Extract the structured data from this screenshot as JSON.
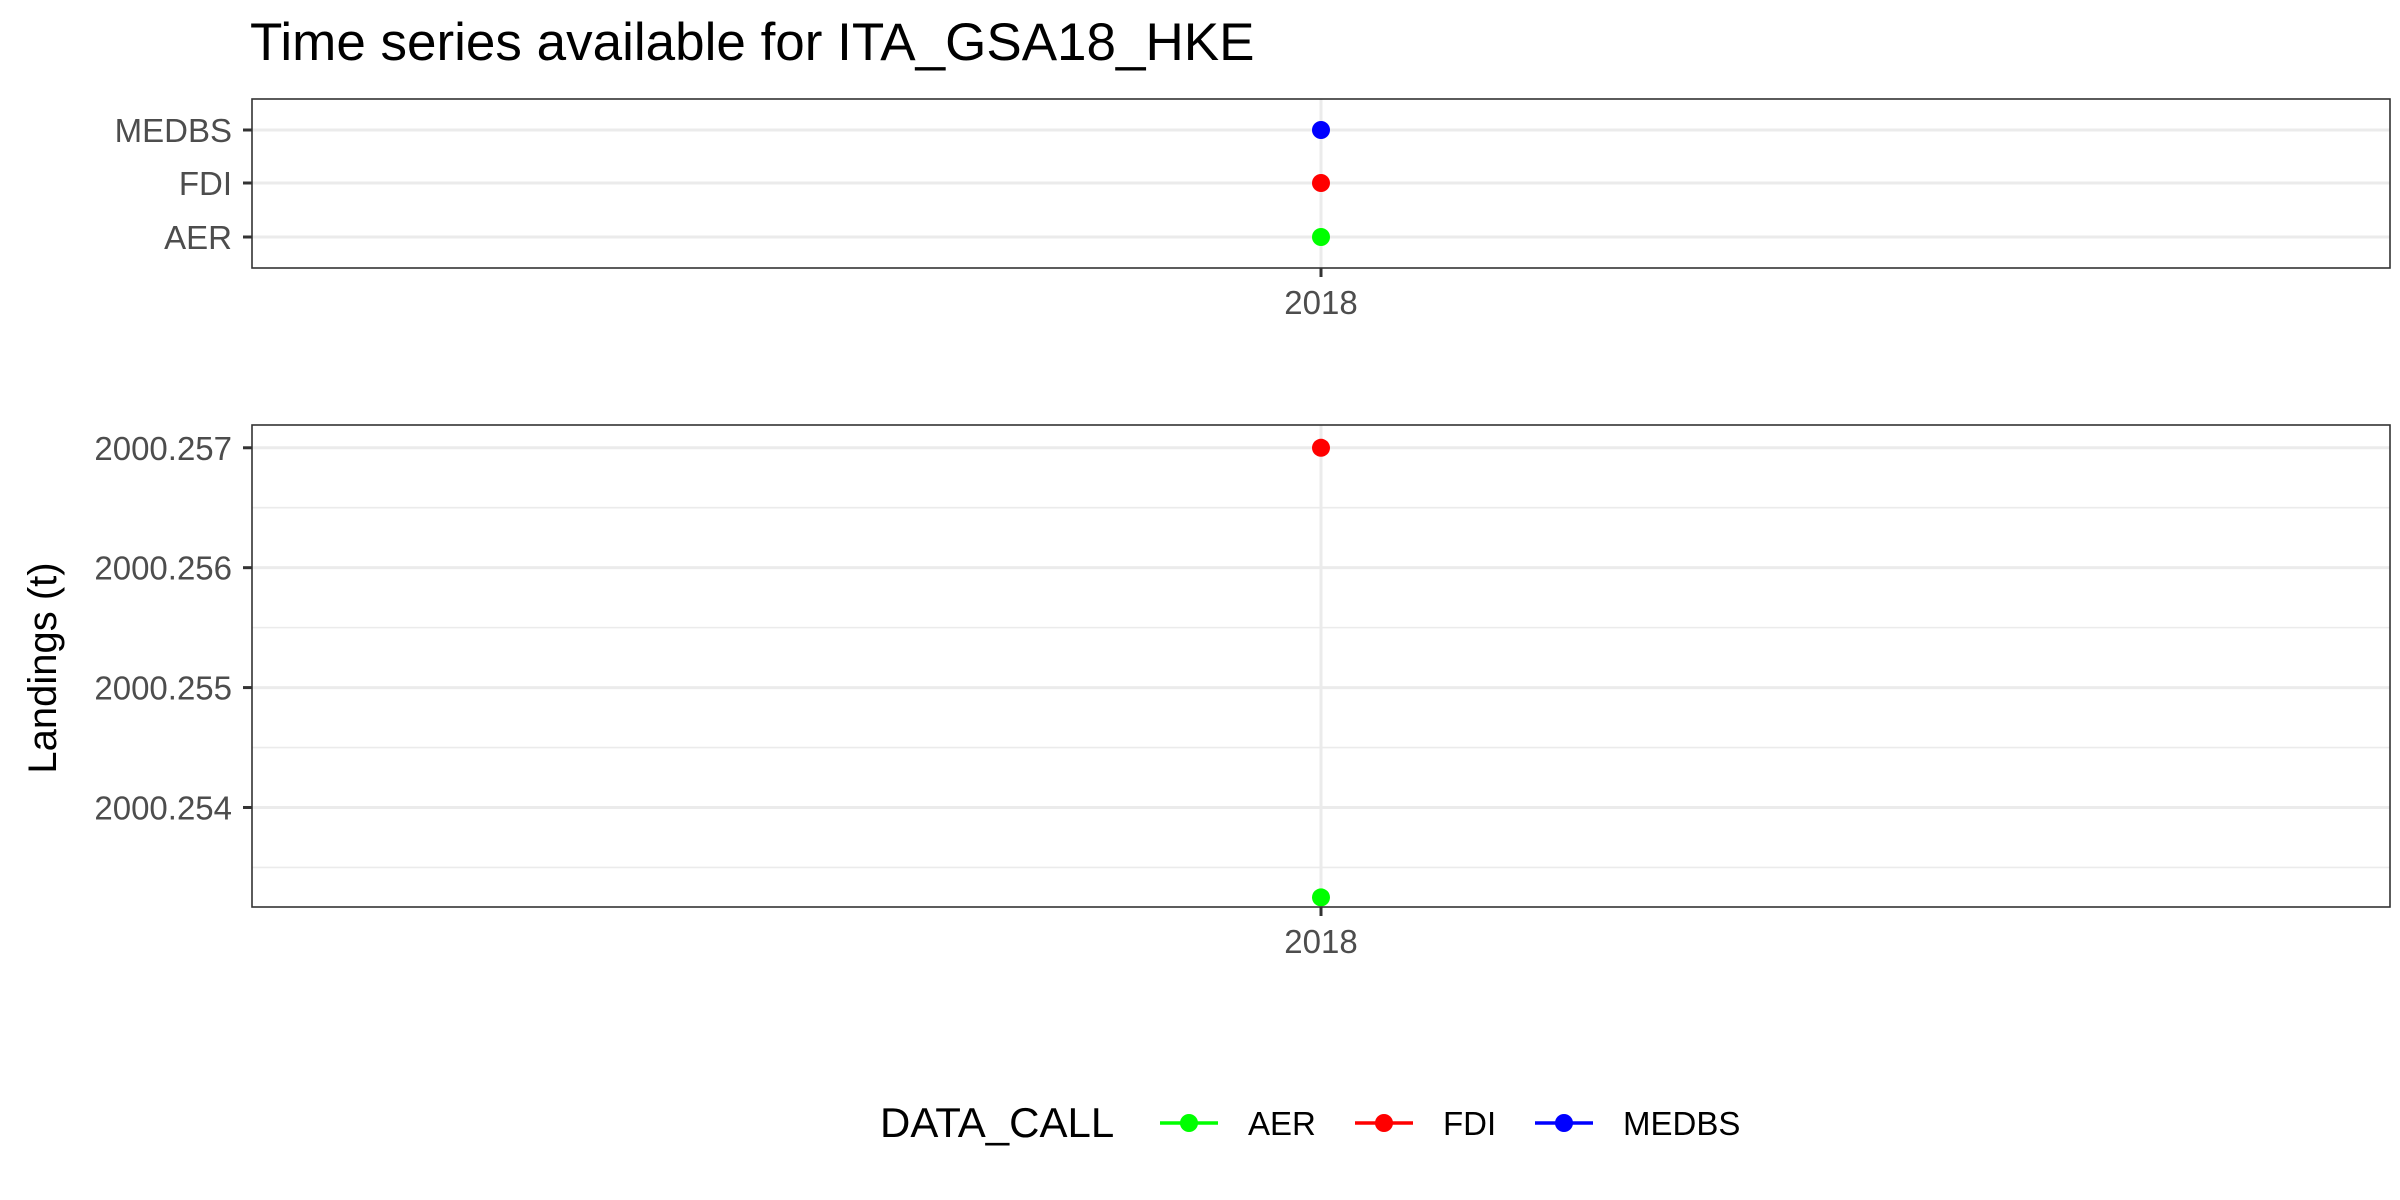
{
  "chart_data": [
    {
      "type": "scatter",
      "title": "Time series available for ITA_GSA18_HKE",
      "xlabel": "",
      "ylabel": "",
      "x_ticks": [
        "2018"
      ],
      "y_categories": [
        "AER",
        "FDI",
        "MEDBS"
      ],
      "grid": true,
      "series": [
        {
          "name": "AER",
          "x": [
            2018
          ],
          "y": [
            "AER"
          ]
        },
        {
          "name": "FDI",
          "x": [
            2018
          ],
          "y": [
            "FDI"
          ]
        },
        {
          "name": "MEDBS",
          "x": [
            2018
          ],
          "y": [
            "MEDBS"
          ]
        }
      ]
    },
    {
      "type": "scatter",
      "xlabel": "",
      "ylabel": "Landings (t)",
      "x_ticks": [
        "2018"
      ],
      "y_ticks": [
        "2000.254",
        "2000.255",
        "2000.256",
        "2000.257"
      ],
      "ylim": [
        2000.25317,
        2000.25719
      ],
      "grid": true,
      "series": [
        {
          "name": "AER",
          "x": [
            2018
          ],
          "y": [
            2000.25325
          ]
        },
        {
          "name": "FDI",
          "x": [
            2018
          ],
          "y": [
            2000.257
          ]
        }
      ]
    }
  ],
  "legend": {
    "title": "DATA_CALL",
    "position": "bottom",
    "items": [
      {
        "label": "AER",
        "color": "#00FF00"
      },
      {
        "label": "FDI",
        "color": "#FF0000"
      },
      {
        "label": "MEDBS",
        "color": "#0000FF"
      }
    ]
  },
  "colors": {
    "AER": "#00FF00",
    "FDI": "#FF0000",
    "MEDBS": "#0000FF"
  }
}
